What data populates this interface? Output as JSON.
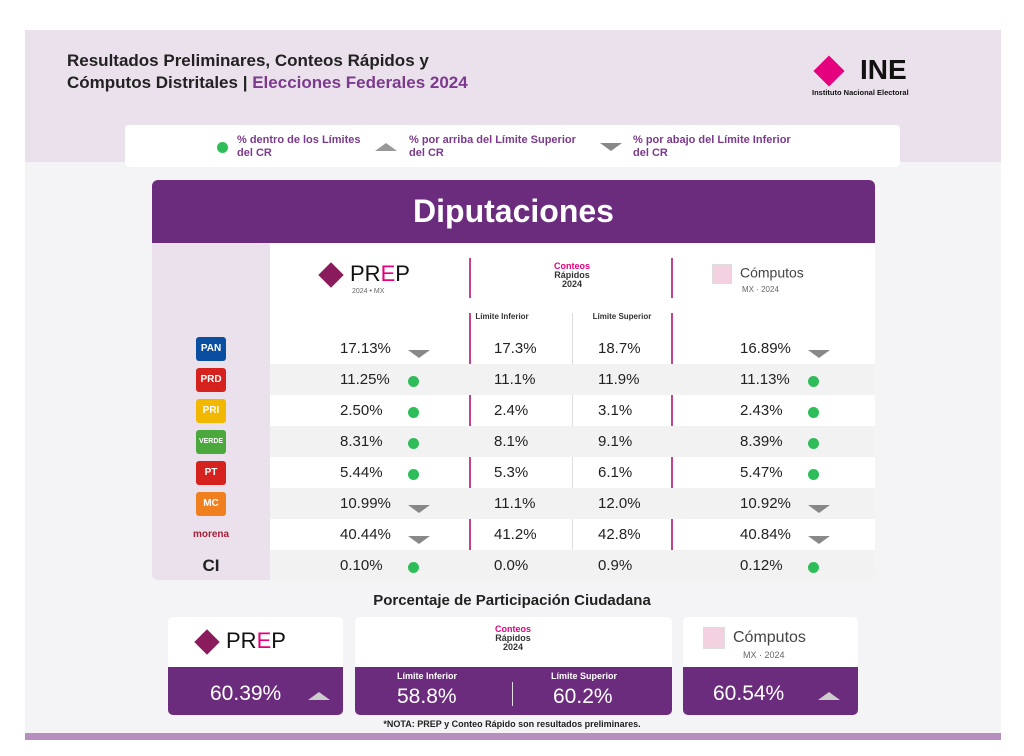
{
  "header": {
    "title_line1": "Resultados Preliminares, Conteos Rápidos y",
    "title_line2": "Cómputos Distritales",
    "separator": "|",
    "title_accent": "Elecciones Federales 2024",
    "logo_word": "INE",
    "logo_sub": "Instituto Nacional Electoral"
  },
  "legend": {
    "within": "% dentro de los Límites del CR",
    "above": "% por arriba del Límite Superior del CR",
    "below": "% por abajo del Límite Inferior del CR"
  },
  "table": {
    "title": "Diputaciones",
    "prep_logo": {
      "pre": "PR",
      "e": "E",
      "post": "P",
      "sub": "2024 • MX"
    },
    "cr_logo": {
      "l1": "Conteos",
      "l2": "Rápidos",
      "l3": "2024"
    },
    "computos_logo": {
      "name": "Cómputos",
      "sub": "MX · 2024"
    },
    "lower_label": "Límite Inferior",
    "upper_label": "Límite Superior",
    "rows": [
      {
        "party": "PAN",
        "color": "#0a4ea2",
        "prep": "17.13%",
        "prep_status": "below",
        "lower": "17.3%",
        "upper": "18.7%",
        "computos": "16.89%",
        "comp_status": "below"
      },
      {
        "party": "PRD",
        "color": "#d6221e",
        "prep": "11.25%",
        "prep_status": "within",
        "lower": "11.1%",
        "upper": "11.9%",
        "computos": "11.13%",
        "comp_status": "within"
      },
      {
        "party": "PRI",
        "color": "#f2b800",
        "prep": "2.50%",
        "prep_status": "within",
        "lower": "2.4%",
        "upper": "3.1%",
        "computos": "2.43%",
        "comp_status": "within"
      },
      {
        "party": "VERDE",
        "color": "#4aa83c",
        "prep": "8.31%",
        "prep_status": "within",
        "lower": "8.1%",
        "upper": "9.1%",
        "computos": "8.39%",
        "comp_status": "within"
      },
      {
        "party": "PT",
        "color": "#d6221e",
        "prep": "5.44%",
        "prep_status": "within",
        "lower": "5.3%",
        "upper": "6.1%",
        "computos": "5.47%",
        "comp_status": "within"
      },
      {
        "party": "MC",
        "color": "#f07f1f",
        "prep": "10.99%",
        "prep_status": "below",
        "lower": "11.1%",
        "upper": "12.0%",
        "computos": "10.92%",
        "comp_status": "below"
      },
      {
        "party": "morena",
        "color": "#a5203a",
        "prep": "40.44%",
        "prep_status": "below",
        "lower": "41.2%",
        "upper": "42.8%",
        "computos": "40.84%",
        "comp_status": "below"
      },
      {
        "party": "CI",
        "color": "#222222",
        "prep": "0.10%",
        "prep_status": "within",
        "lower": "0.0%",
        "upper": "0.9%",
        "computos": "0.12%",
        "comp_status": "within"
      }
    ]
  },
  "participation": {
    "title": "Porcentaje de Participación Ciudadana",
    "prep": "60.39%",
    "prep_status": "above",
    "lower_label": "Límite Inferior",
    "lower": "58.8%",
    "upper_label": "Límite Superior",
    "upper": "60.2%",
    "computos": "60.54%",
    "comp_status": "above"
  },
  "note": "*NOTA: PREP y Conteo Rápido son resultados preliminares.",
  "colors": {
    "purple": "#6b2c7e",
    "pink": "#e5007e",
    "green": "#2ebd59"
  }
}
